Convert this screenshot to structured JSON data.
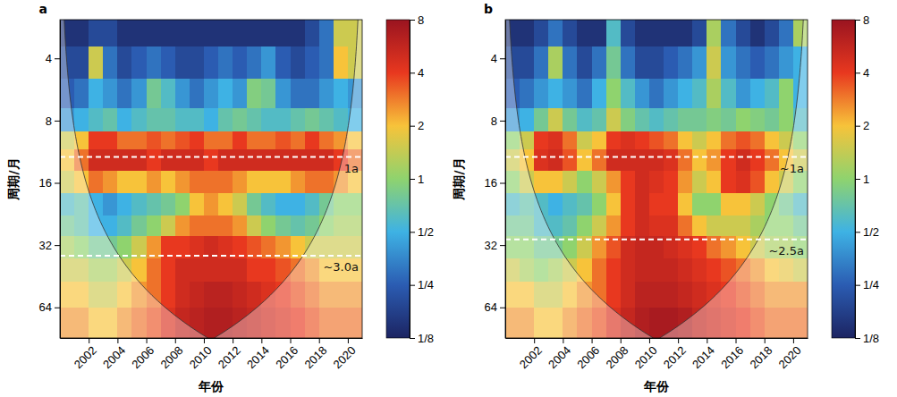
{
  "chart_data": [
    {
      "type": "heatmap",
      "title": "a",
      "x_label": "年份",
      "y_label": "周期/月",
      "xlim": [
        2000,
        2021
      ],
      "xticks": [
        2002,
        2004,
        2006,
        2008,
        2010,
        2012,
        2014,
        2016,
        2018,
        2020
      ],
      "ylim": [
        2.6,
        90
      ],
      "yticks": [
        4,
        8,
        16,
        32,
        64
      ],
      "log": "y",
      "x_edges": [
        2000,
        2001,
        2002,
        2003,
        2004,
        2005,
        2006,
        2007,
        2008,
        2009,
        2010,
        2011,
        2012,
        2013,
        2014,
        2015,
        2016,
        2017,
        2018,
        2019,
        2020,
        2021
      ],
      "y_edges": [
        2.6,
        3.5,
        5,
        7,
        9,
        11,
        14,
        18,
        23,
        29,
        37,
        48,
        64,
        90
      ],
      "cells": [
        [
          0.15,
          0.15,
          0.2,
          0.2,
          0.15,
          0.15,
          0.15,
          0.15,
          0.15,
          0.15,
          0.15,
          0.15,
          0.15,
          0.15,
          0.15,
          0.15,
          0.15,
          0.2,
          0.3,
          1.5,
          1.5
        ],
        [
          0.2,
          0.2,
          1.5,
          0.3,
          0.2,
          0.25,
          0.3,
          0.25,
          0.2,
          0.2,
          0.25,
          0.3,
          0.25,
          0.3,
          0.4,
          0.25,
          0.2,
          0.25,
          0.3,
          2,
          1.5
        ],
        [
          0.25,
          0.3,
          0.5,
          0.4,
          0.3,
          0.4,
          0.8,
          0.6,
          0.4,
          0.3,
          0.4,
          0.5,
          0.4,
          0.9,
          0.8,
          0.4,
          0.3,
          0.3,
          0.4,
          0.5,
          0.4
        ],
        [
          0.4,
          0.5,
          0.6,
          0.7,
          0.5,
          0.6,
          0.7,
          0.7,
          0.6,
          0.6,
          0.5,
          0.7,
          0.8,
          0.7,
          0.6,
          0.6,
          0.7,
          0.8,
          0.7,
          0.6,
          0.5
        ],
        [
          1.5,
          2,
          4,
          4,
          3,
          3,
          3.5,
          3,
          3.5,
          4,
          3,
          3,
          4,
          3,
          3,
          3.5,
          3,
          4,
          3,
          2.5,
          2
        ],
        [
          2,
          3,
          5,
          5,
          5,
          5,
          4,
          5,
          5,
          5,
          4,
          5,
          5,
          5,
          5,
          5,
          5,
          5,
          5,
          4,
          3
        ],
        [
          1.5,
          2,
          3,
          2.5,
          2,
          2,
          2.5,
          2,
          2.5,
          3,
          3,
          3,
          2.5,
          2,
          2,
          2,
          2.5,
          3,
          3,
          2.5,
          2
        ],
        [
          0.6,
          0.7,
          0.5,
          0.4,
          0.5,
          0.6,
          0.7,
          0.8,
          1,
          2,
          2.5,
          2,
          1.5,
          0.8,
          0.6,
          0.5,
          0.5,
          0.6,
          0.8,
          1,
          1
        ],
        [
          0.8,
          0.7,
          0.5,
          0.5,
          0.6,
          0.8,
          1,
          1.5,
          2.5,
          3,
          3,
          3,
          2.5,
          1.5,
          1,
          0.8,
          0.7,
          0.8,
          1,
          1.2,
          1.2
        ],
        [
          1.2,
          1,
          0.8,
          0.8,
          1,
          1.5,
          2.5,
          4,
          4,
          4.5,
          5,
          4.5,
          4,
          3.5,
          3,
          2.5,
          2,
          1.5,
          1.5,
          1.5,
          1.5
        ],
        [
          1.5,
          1.5,
          1.2,
          1.2,
          1.5,
          2,
          3,
          4,
          5,
          5,
          5,
          5,
          5,
          4,
          4,
          3.5,
          3,
          2.5,
          2,
          2,
          2
        ],
        [
          2,
          2,
          1.5,
          1.5,
          2,
          2.5,
          3,
          4,
          5,
          5.5,
          6,
          6,
          5.5,
          5,
          4.5,
          4,
          3.5,
          3,
          2.5,
          2.5,
          2.5
        ],
        [
          2.5,
          2.5,
          2,
          2,
          2.5,
          3,
          3.5,
          4.5,
          5.5,
          6,
          6.5,
          6.5,
          6,
          5.5,
          5,
          4.5,
          4,
          3.5,
          3,
          3,
          3
        ]
      ],
      "colorbar": {
        "range": [
          0.125,
          8
        ],
        "ticks": [
          {
            "value": 0.125,
            "label": "1/8"
          },
          {
            "value": 0.25,
            "label": "1/4"
          },
          {
            "value": 0.5,
            "label": "1/2"
          },
          1,
          2,
          4,
          8
        ]
      },
      "annotations": [
        {
          "value": 12,
          "label": "1a"
        },
        {
          "value": 36,
          "label": "~3.0a"
        }
      ]
    },
    {
      "type": "heatmap",
      "title": "b",
      "x_label": "年份",
      "y_label": "周期/月",
      "xlim": [
        2000,
        2021
      ],
      "xticks": [
        2002,
        2004,
        2006,
        2008,
        2010,
        2012,
        2014,
        2016,
        2018,
        2020
      ],
      "ylim": [
        2.6,
        90
      ],
      "yticks": [
        4,
        8,
        16,
        32,
        64
      ],
      "log": "y",
      "x_edges": [
        2000,
        2001,
        2002,
        2003,
        2004,
        2005,
        2006,
        2007,
        2008,
        2009,
        2010,
        2011,
        2012,
        2013,
        2014,
        2015,
        2016,
        2017,
        2018,
        2019,
        2020,
        2021
      ],
      "y_edges": [
        2.6,
        3.5,
        5,
        7,
        9,
        11,
        14,
        18,
        23,
        29,
        37,
        48,
        64,
        90
      ],
      "cells": [
        [
          0.15,
          0.15,
          0.2,
          0.3,
          0.2,
          0.15,
          0.15,
          0.6,
          0.2,
          0.15,
          0.15,
          0.15,
          0.15,
          0.2,
          1.2,
          0.3,
          0.2,
          0.15,
          0.2,
          0.3,
          1.2
        ],
        [
          0.2,
          0.2,
          0.3,
          1.2,
          0.3,
          0.2,
          0.3,
          0.8,
          0.3,
          0.2,
          0.2,
          0.25,
          0.3,
          0.4,
          1.5,
          0.4,
          0.3,
          0.25,
          0.3,
          0.4,
          0.5
        ],
        [
          0.25,
          0.3,
          0.4,
          0.5,
          0.4,
          0.3,
          0.5,
          1,
          0.6,
          0.4,
          0.3,
          0.4,
          0.5,
          0.6,
          1.2,
          0.6,
          0.4,
          0.5,
          0.6,
          1,
          0.5
        ],
        [
          0.4,
          0.5,
          0.8,
          1.5,
          0.8,
          0.6,
          0.7,
          1.5,
          0.9,
          0.7,
          0.6,
          0.7,
          0.8,
          0.8,
          0.9,
          0.8,
          1,
          0.9,
          0.8,
          1,
          0.6
        ],
        [
          1,
          1.5,
          4,
          4.5,
          3,
          1.5,
          2,
          4,
          4.5,
          4,
          3.5,
          3,
          2,
          1.5,
          2,
          3,
          3.5,
          3,
          2,
          1.5,
          1
        ],
        [
          1.5,
          2,
          4.5,
          5,
          3.5,
          2,
          3,
          5,
          5,
          5,
          5,
          4.5,
          3,
          2,
          2.5,
          4,
          5,
          4,
          3,
          2,
          1.5
        ],
        [
          1,
          1.5,
          2,
          2,
          1.5,
          1,
          1.5,
          2.5,
          4,
          5,
          4.5,
          4,
          2.5,
          1.5,
          2,
          4,
          4.5,
          3.5,
          2,
          1.5,
          1
        ],
        [
          0.6,
          0.7,
          0.6,
          0.5,
          0.6,
          0.7,
          1,
          2,
          4,
          5,
          4,
          4,
          2,
          1,
          1,
          2,
          2,
          1.5,
          1,
          0.8,
          0.6
        ],
        [
          0.8,
          0.8,
          0.6,
          0.6,
          0.7,
          1,
          1.5,
          2.5,
          4,
          5,
          4.5,
          4.5,
          3,
          2,
          1.5,
          1.5,
          1.5,
          1.2,
          1,
          1,
          0.8
        ],
        [
          1,
          1,
          0.8,
          0.8,
          1,
          1.5,
          2.5,
          3.5,
          5,
          5.5,
          5.5,
          5,
          4.5,
          4,
          3,
          2.5,
          2,
          1.5,
          1.2,
          1.2,
          1
        ],
        [
          1.5,
          1.2,
          1,
          1.2,
          1.5,
          2,
          3,
          4,
          5,
          5.5,
          5.5,
          5.5,
          5,
          4.5,
          4,
          3.5,
          3,
          2.5,
          2,
          1.8,
          1.5
        ],
        [
          2,
          2,
          1.5,
          1.5,
          2,
          2.5,
          3,
          4,
          5,
          6,
          6,
          6,
          5.5,
          5,
          4.5,
          4,
          3.5,
          3,
          2.5,
          2.5,
          2.5
        ],
        [
          2.5,
          2.5,
          2,
          2,
          2.5,
          3,
          3.5,
          4.5,
          5.5,
          6.5,
          7,
          7,
          6.5,
          5.5,
          5,
          4.5,
          4,
          3.5,
          3,
          3,
          3
        ]
      ],
      "colorbar": {
        "range": [
          0.125,
          8
        ],
        "ticks": [
          {
            "value": 0.125,
            "label": "1/8"
          },
          {
            "value": 0.25,
            "label": "1/4"
          },
          {
            "value": 0.5,
            "label": "1/2"
          },
          1,
          2,
          4,
          8
        ]
      },
      "annotations": [
        {
          "value": 12,
          "label": "~1a"
        },
        {
          "value": 30,
          "label": "~2.5a"
        }
      ]
    }
  ]
}
